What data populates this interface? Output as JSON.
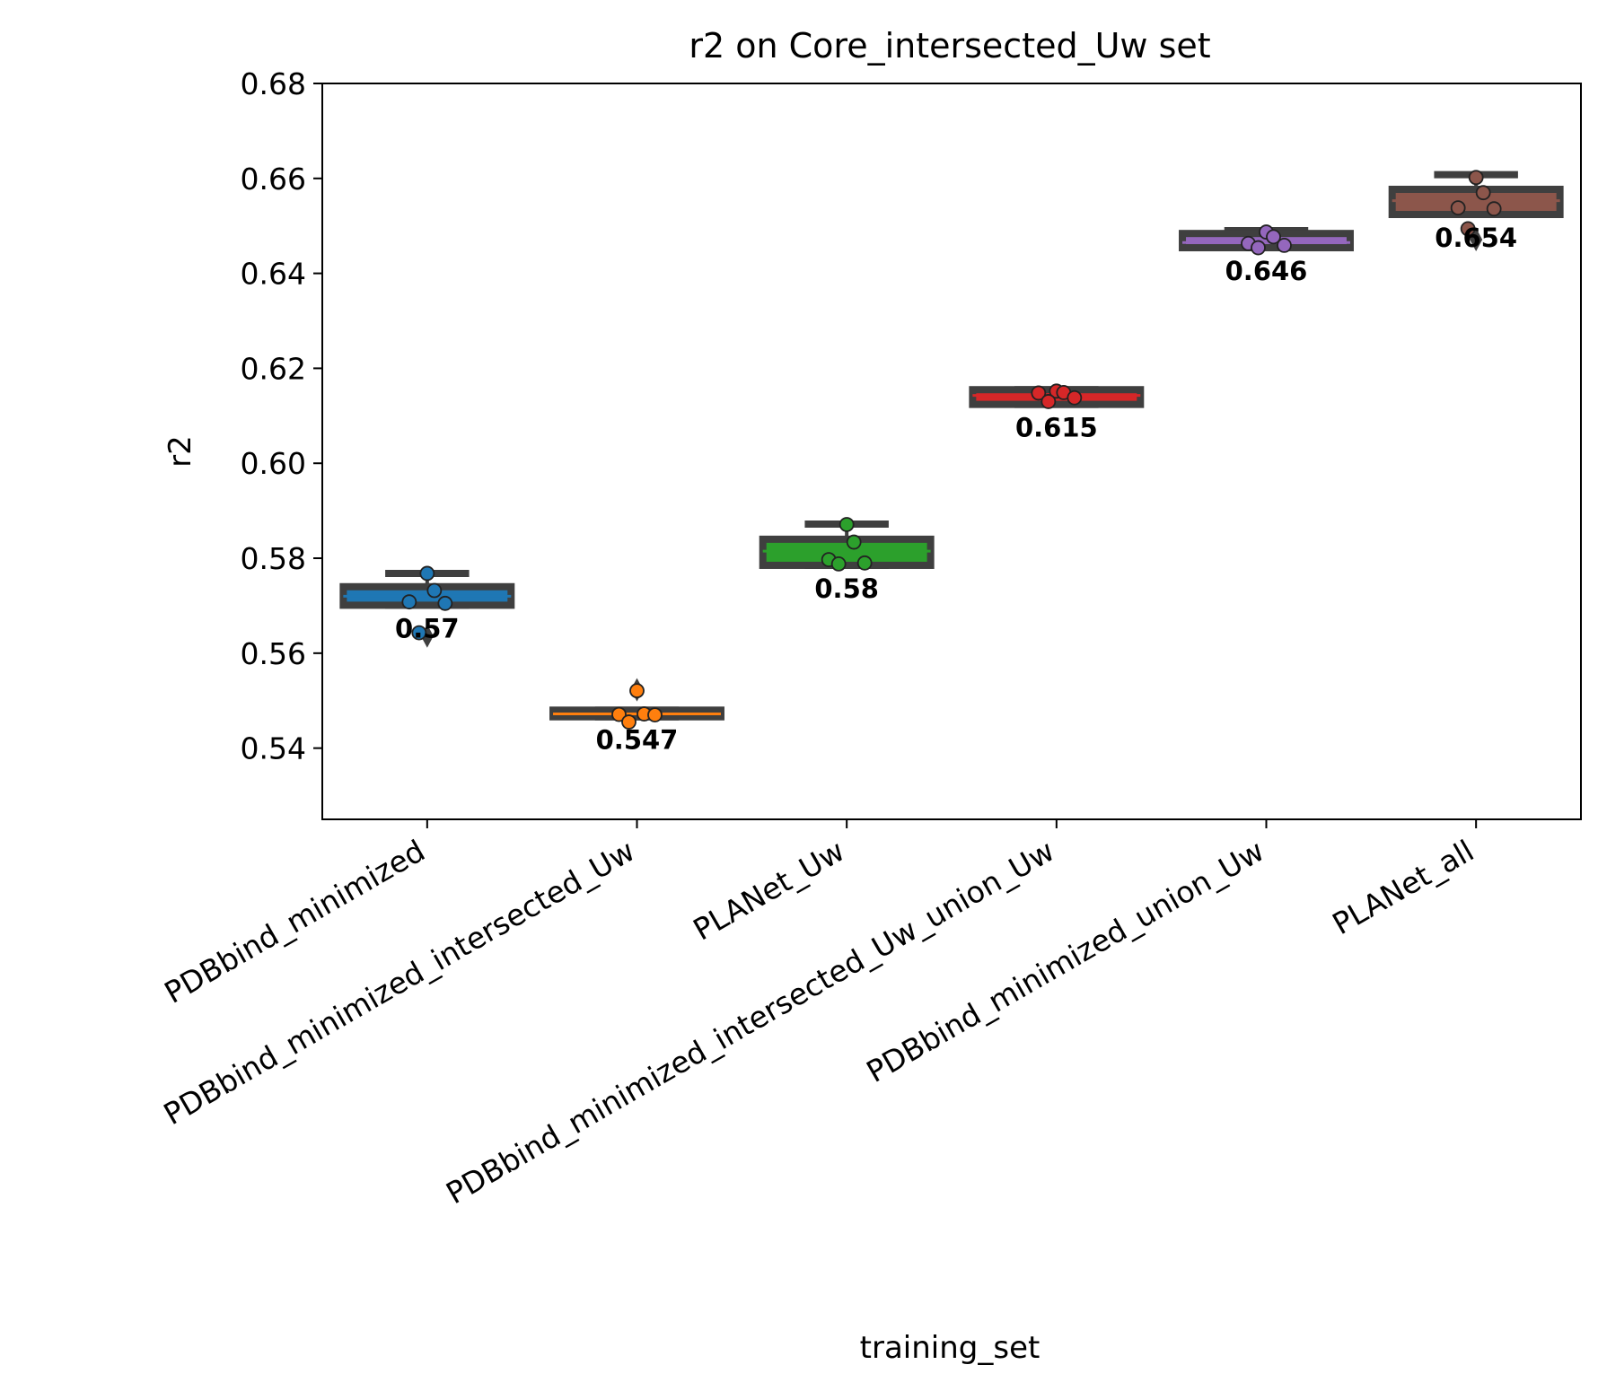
{
  "chart_data": {
    "type": "box",
    "title": "r2 on Core_intersected_Uw set",
    "xlabel": "training_set",
    "ylabel": "r2",
    "ylim": [
      0.525,
      0.68
    ],
    "yticks": [
      "0.54",
      "0.56",
      "0.58",
      "0.60",
      "0.62",
      "0.64",
      "0.66",
      "0.68"
    ],
    "grid": false,
    "categories": [
      "PDBbind_minimized",
      "PDBbind_minimized_intersected_Uw",
      "PLANet_Uw",
      "PDBbind_minimized_intersected_Uw_union_Uw",
      "PDBbind_minimized_union_Uw",
      "PLANet_all"
    ],
    "colors": [
      "#1f77b4",
      "#ff7f0e",
      "#2ca02c",
      "#d62728",
      "#9467bd",
      "#8c564b"
    ],
    "box_color": "#3f3f3f",
    "boxes": [
      {
        "q1": 0.5701,
        "median": 0.572,
        "q3": 0.574,
        "whisker_low": 0.5701,
        "whisker_high": 0.5768,
        "outliers": [
          0.5636
        ]
      },
      {
        "q1": 0.5466,
        "median": 0.5472,
        "q3": 0.548,
        "whisker_low": 0.5466,
        "whisker_high": 0.548,
        "outliers": [
          0.5523
        ]
      },
      {
        "q1": 0.5785,
        "median": 0.5815,
        "q3": 0.584,
        "whisker_low": 0.5785,
        "whisker_high": 0.5872,
        "outliers": []
      },
      {
        "q1": 0.6124,
        "median": 0.6143,
        "q3": 0.6155,
        "whisker_low": 0.6124,
        "whisker_high": 0.6155,
        "outliers": []
      },
      {
        "q1": 0.6454,
        "median": 0.6465,
        "q3": 0.6484,
        "whisker_low": 0.6454,
        "whisker_high": 0.649,
        "outliers": []
      },
      {
        "q1": 0.6524,
        "median": 0.6553,
        "q3": 0.6577,
        "whisker_low": 0.6524,
        "whisker_high": 0.6608,
        "outliers": [
          0.6471
        ]
      }
    ],
    "points": [
      [
        0.5768,
        0.5732,
        0.5708,
        0.5705,
        0.5643
      ],
      [
        0.5521,
        0.5472,
        0.5471,
        0.547,
        0.5455
      ],
      [
        0.5871,
        0.5834,
        0.5797,
        0.579,
        0.5788
      ],
      [
        0.6152,
        0.6149,
        0.6148,
        0.6138,
        0.613
      ],
      [
        0.6487,
        0.6477,
        0.6463,
        0.6459,
        0.6454
      ],
      [
        0.6602,
        0.657,
        0.6538,
        0.6536,
        0.6494
      ]
    ],
    "mean_labels": [
      "0.57",
      "0.547",
      "0.58",
      "0.615",
      "0.646",
      "0.654"
    ]
  }
}
